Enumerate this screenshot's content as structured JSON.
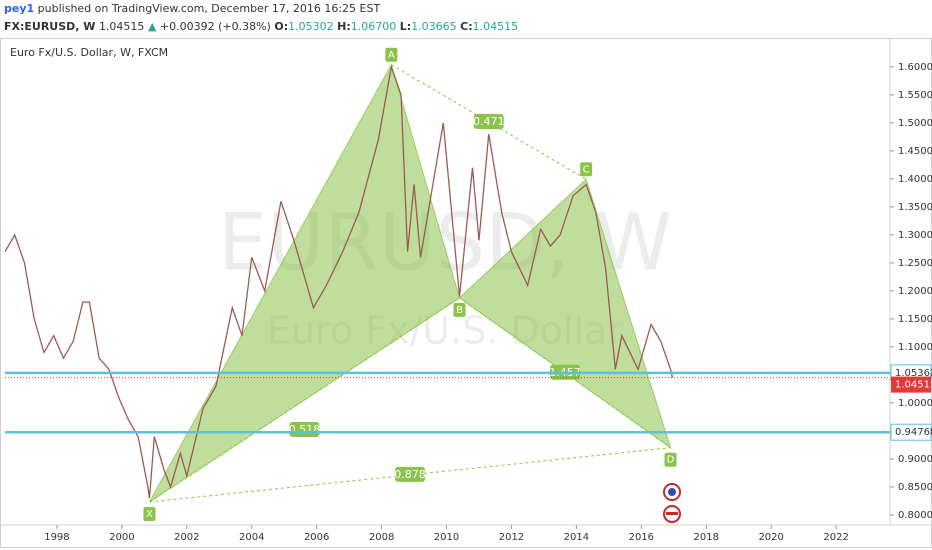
{
  "header": {
    "author": "pey1",
    "published": "published on TradingView.com, December 17, 2016 16:25 EST",
    "symbol": "FX:EURUSD, W",
    "last": "1.04515",
    "arrow": "▲",
    "change": "+0.00392 (+0.38%)",
    "open_label": "O:",
    "open": "1.05302",
    "high_label": "H:",
    "high": "1.06700",
    "low_label": "L:",
    "low": "1.03665",
    "close_label": "C:",
    "close": "1.04515"
  },
  "chart_data": {
    "type": "line",
    "title": "Euro Fx/U.S. Dollar, W, FXCM",
    "watermark": "EURUSD, W",
    "watermark_sub": "Euro Fx/U.S. Dollar",
    "color": "#9c5a52",
    "x": [
      1996.4,
      1996.7,
      1997.0,
      1997.3,
      1997.6,
      1997.9,
      1998.2,
      1998.5,
      1998.8,
      1999.0,
      1999.3,
      1999.6,
      1999.9,
      2000.2,
      2000.5,
      2000.8,
      2000.85,
      2001.0,
      2001.3,
      2001.5,
      2001.8,
      2002.0,
      2002.5,
      2002.9,
      2003.4,
      2003.7,
      2004.0,
      2004.4,
      2004.9,
      2005.3,
      2005.9,
      2006.3,
      2006.8,
      2007.3,
      2007.9,
      2008.3,
      2008.6,
      2008.8,
      2009.0,
      2009.2,
      2009.9,
      2010.4,
      2010.8,
      2011.0,
      2011.3,
      2011.7,
      2012.0,
      2012.5,
      2012.9,
      2013.2,
      2013.5,
      2013.9,
      2014.3,
      2014.6,
      2014.9,
      2015.2,
      2015.4,
      2015.9,
      2016.3,
      2016.6,
      2016.9,
      2016.96
    ],
    "values": [
      1.27,
      1.3,
      1.25,
      1.15,
      1.09,
      1.12,
      1.08,
      1.11,
      1.18,
      1.18,
      1.08,
      1.06,
      1.01,
      0.97,
      0.94,
      0.85,
      0.83,
      0.94,
      0.88,
      0.85,
      0.91,
      0.87,
      0.99,
      1.03,
      1.17,
      1.12,
      1.26,
      1.2,
      1.36,
      1.29,
      1.17,
      1.21,
      1.27,
      1.34,
      1.47,
      1.6,
      1.55,
      1.27,
      1.39,
      1.26,
      1.5,
      1.19,
      1.42,
      1.29,
      1.48,
      1.34,
      1.27,
      1.21,
      1.31,
      1.28,
      1.3,
      1.37,
      1.39,
      1.34,
      1.24,
      1.06,
      1.12,
      1.06,
      1.14,
      1.11,
      1.06,
      1.045
    ],
    "xlim": [
      1996.4,
      2023.66
    ],
    "ylim": [
      0.782,
      1.648
    ],
    "xticks": [
      1998,
      2000,
      2002,
      2004,
      2006,
      2008,
      2010,
      2012,
      2014,
      2016,
      2018,
      2020,
      2022
    ],
    "yticks": [
      {
        "value": 0.8,
        "label": "0.80000"
      },
      {
        "value": 0.85,
        "label": "0.85000"
      },
      {
        "value": 0.9,
        "label": "0.90000"
      },
      {
        "value": 0.95,
        "label": "0.95000"
      },
      {
        "value": 1.0,
        "label": "1.00000"
      },
      {
        "value": 1.05,
        "label": "1.05000"
      },
      {
        "value": 1.1,
        "label": "1.10000"
      },
      {
        "value": 1.15,
        "label": "1.15000"
      },
      {
        "value": 1.2,
        "label": "1.20000"
      },
      {
        "value": 1.25,
        "label": "1.25000"
      },
      {
        "value": 1.3,
        "label": "1.30000"
      },
      {
        "value": 1.35,
        "label": "1.35000"
      },
      {
        "value": 1.4,
        "label": "1.40000"
      },
      {
        "value": 1.45,
        "label": "1.45000"
      },
      {
        "value": 1.5,
        "label": "1.50000"
      },
      {
        "value": 1.55,
        "label": "1.55000"
      },
      {
        "value": 1.6,
        "label": "1.60000"
      }
    ],
    "pattern": {
      "color": "#8bc34a",
      "points": [
        {
          "label": "X",
          "x": 2000.85,
          "y": 0.823
        },
        {
          "label": "A",
          "x": 2008.3,
          "y": 1.6038
        },
        {
          "label": "B",
          "x": 2010.4,
          "y": 1.1875
        },
        {
          "label": "C",
          "x": 2014.3,
          "y": 1.3993
        },
        {
          "label": "D",
          "x": 2016.9,
          "y": 0.92
        }
      ],
      "ratios": [
        0.518,
        0.471,
        1.457,
        0.878
      ]
    },
    "levels": [
      {
        "value": 1.05362,
        "color": "#5bc0de"
      },
      {
        "value": 0.94768,
        "color": "#5bc0de"
      }
    ],
    "last_price": {
      "value": 1.04515,
      "color": "#e53935"
    }
  }
}
